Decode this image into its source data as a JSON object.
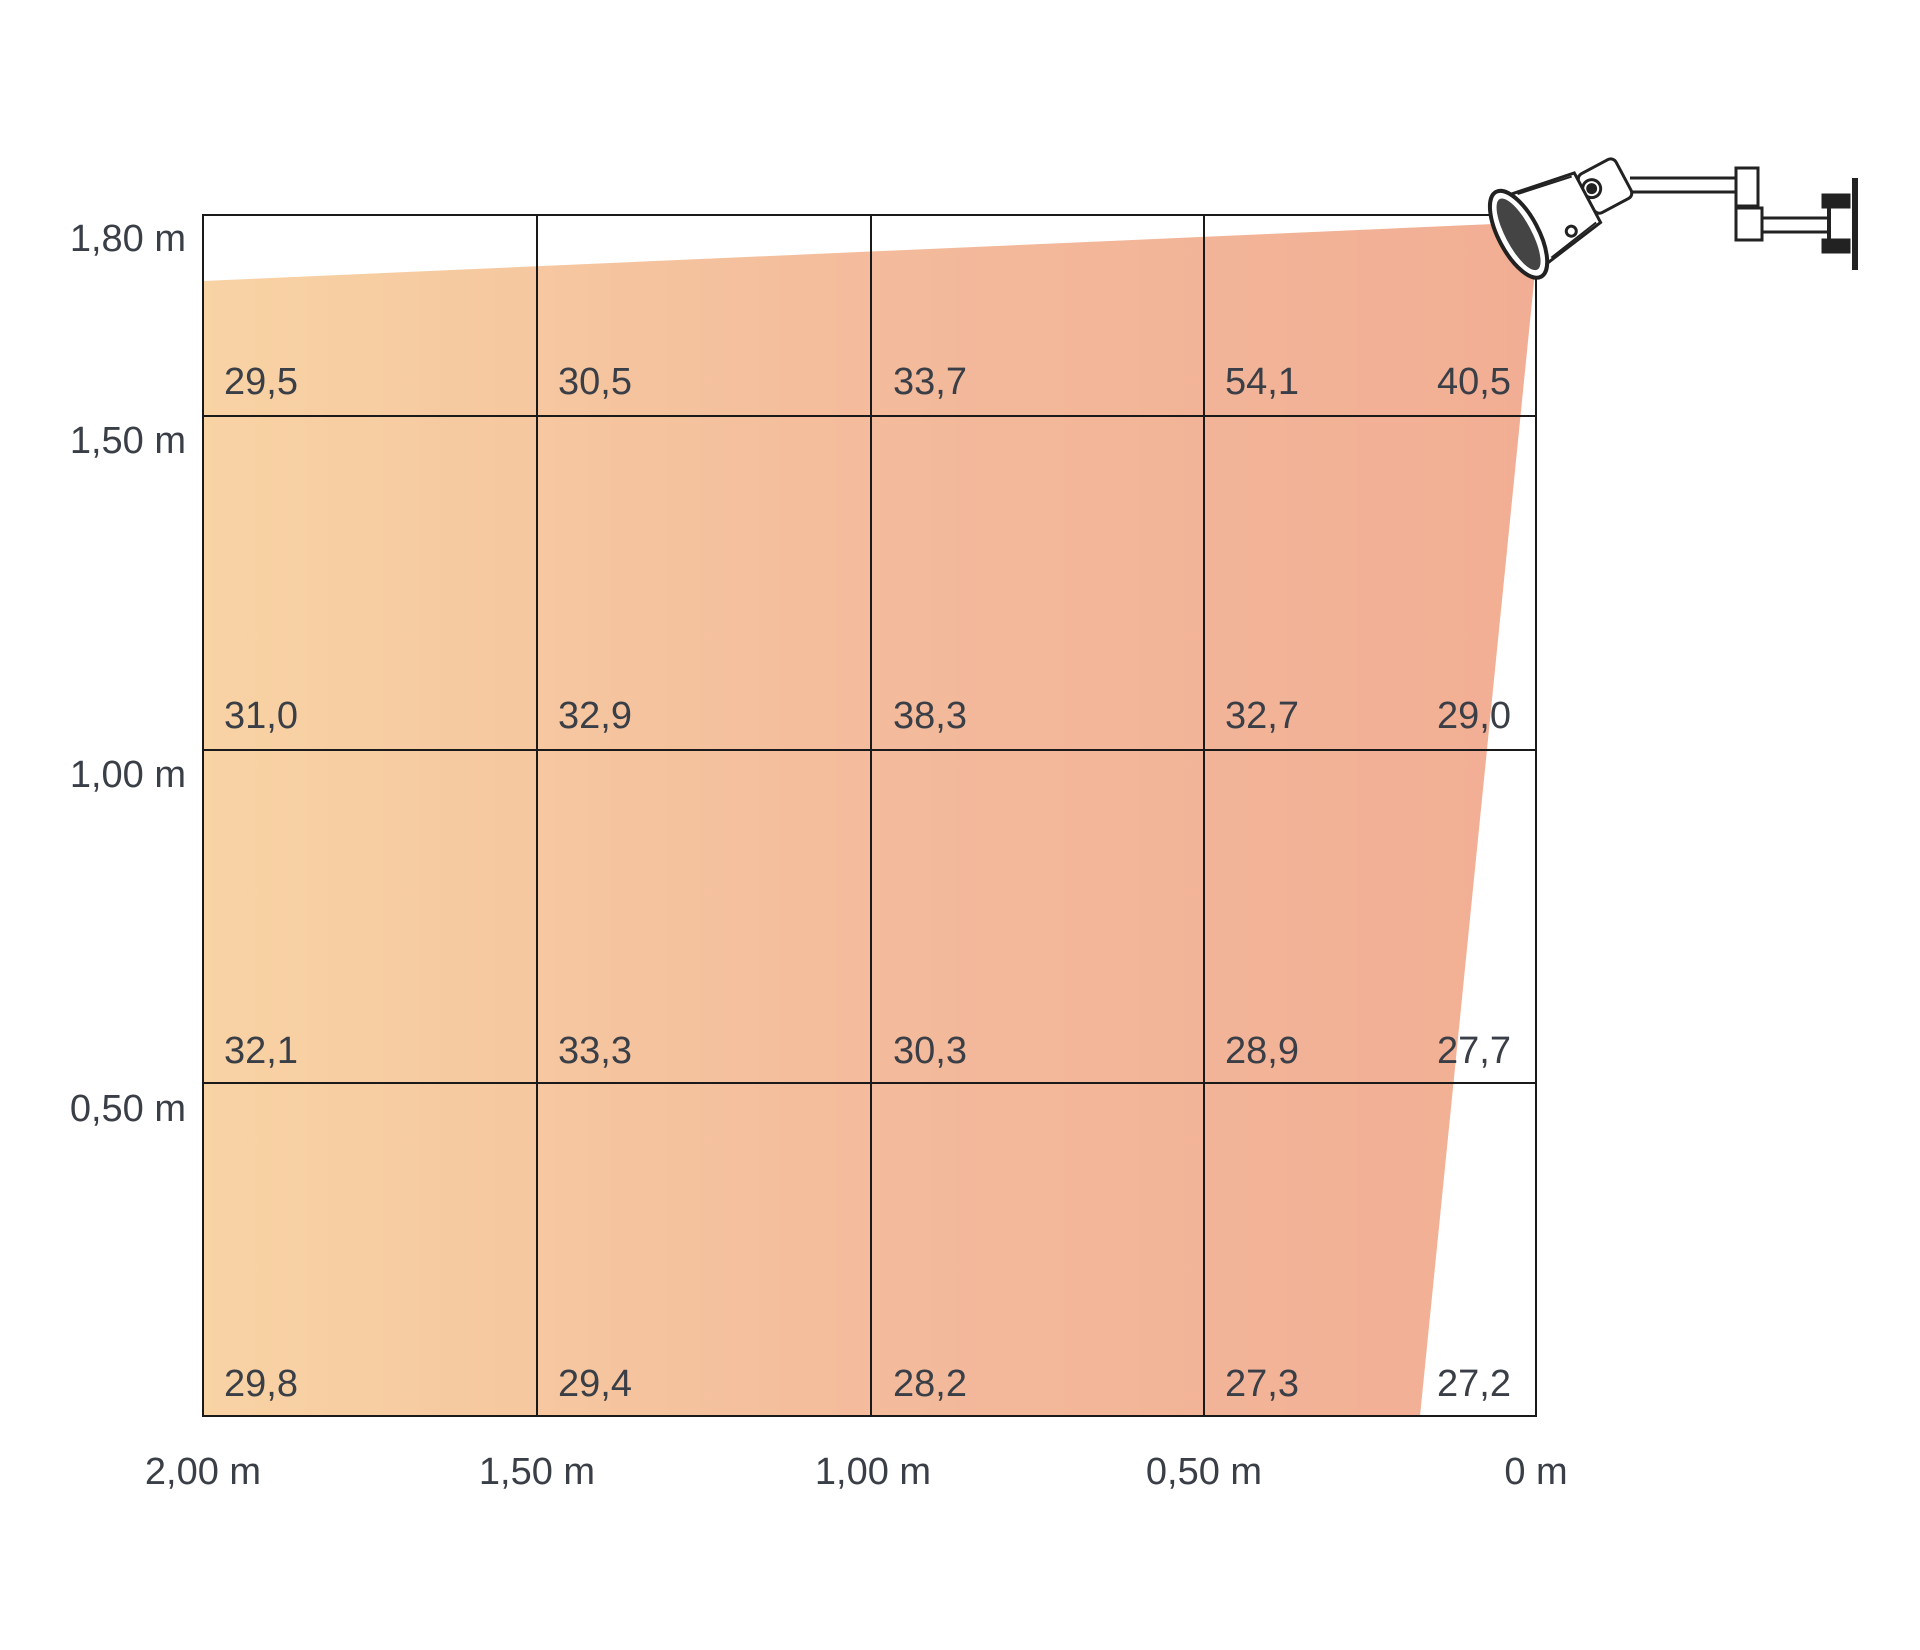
{
  "colors": {
    "beam_left": "#f8d3a4",
    "beam_right": "#f2ae94",
    "grid_line": "#1a1a1a",
    "text": "#3a3f47",
    "heater": "#222222"
  },
  "y_axis": {
    "labels": [
      "1,80 m",
      "1,50 m",
      "1,00 m",
      "0,50 m"
    ]
  },
  "x_axis": {
    "labels": [
      "2,00 m",
      "1,50 m",
      "1,00 m",
      "0,50 m",
      "0 m"
    ]
  },
  "cells": {
    "rows": [
      [
        "29,5",
        "30,5",
        "33,7",
        "54,1",
        "40,5"
      ],
      [
        "31,0",
        "32,9",
        "38,3",
        "32,7",
        "29,0"
      ],
      [
        "32,1",
        "33,3",
        "30,3",
        "28,9",
        "27,7"
      ],
      [
        "29,8",
        "29,4",
        "28,2",
        "27,3",
        "27,2"
      ]
    ]
  },
  "icon": "wall-mounted-heater-icon"
}
